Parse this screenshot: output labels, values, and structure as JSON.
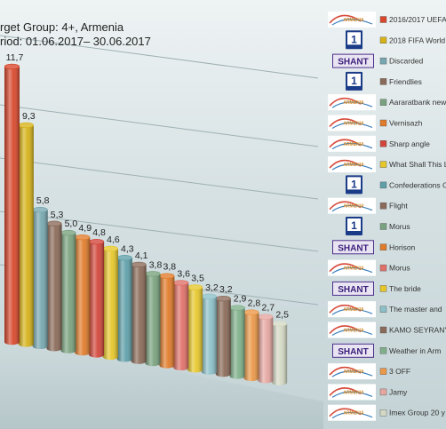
{
  "header": {
    "line1": "rget Group: 4+, Armenia",
    "line2": "riod: 01.06.2017– 30.06.2017"
  },
  "chart_data": {
    "type": "bar",
    "categories": [
      "2016/2017 UEFA",
      "2018 FIFA World",
      "Discarded",
      "Friendlies",
      "Aararatbank new",
      "Vernisazh",
      "Sharp angle",
      "What Shall This L",
      "Confederations C",
      "Flight",
      "Morus",
      "Horison",
      "Morus",
      "The bride",
      "The master and",
      "KAMO SEYRANY",
      "Weather in Arm",
      "3 OFF",
      "Jamy",
      "Imex Group 20 y"
    ],
    "values": [
      11.7,
      9.3,
      5.8,
      5.3,
      5.0,
      4.9,
      4.8,
      4.6,
      4.3,
      4.1,
      3.8,
      3.8,
      3.6,
      3.5,
      3.2,
      3.2,
      2.9,
      2.8,
      2.7,
      2.5
    ],
    "value_labels": [
      "11,7",
      "9,3",
      "5,8",
      "5,3",
      "5,0",
      "4,9",
      "4,8",
      "4,6",
      "4,3",
      "4,1",
      "3,8",
      "3,8",
      "3,6",
      "3,5",
      "3,2",
      "3,2",
      "2,9",
      "2,8",
      "2,7",
      "2,5"
    ],
    "colors": [
      "#d8472b",
      "#d6b218",
      "#76a7b0",
      "#8a6a58",
      "#79a27e",
      "#e07b2a",
      "#d2453a",
      "#e6c72a",
      "#5e9fa8",
      "#8a6a58",
      "#79a27e",
      "#e07b2a",
      "#df7068",
      "#e6c72a",
      "#8cc0c8",
      "#8a6a58",
      "#7fb08a",
      "#eb9848",
      "#e6a6a0",
      "#d4d9c4"
    ],
    "channel_logos": [
      "armenia",
      "h1",
      "shant",
      "h1",
      "armenia",
      "armenia",
      "armenia",
      "armenia",
      "h1",
      "armenia",
      "h1",
      "shant",
      "armenia",
      "shant",
      "armenia",
      "armenia",
      "shant",
      "armenia",
      "armenia",
      "armenia"
    ],
    "logo_labels": {
      "h1": "1",
      "shant": "SHANT",
      "armenia": "ARMENIA"
    },
    "ylim": [
      0,
      12
    ],
    "grid": true,
    "legend_position": "right"
  }
}
